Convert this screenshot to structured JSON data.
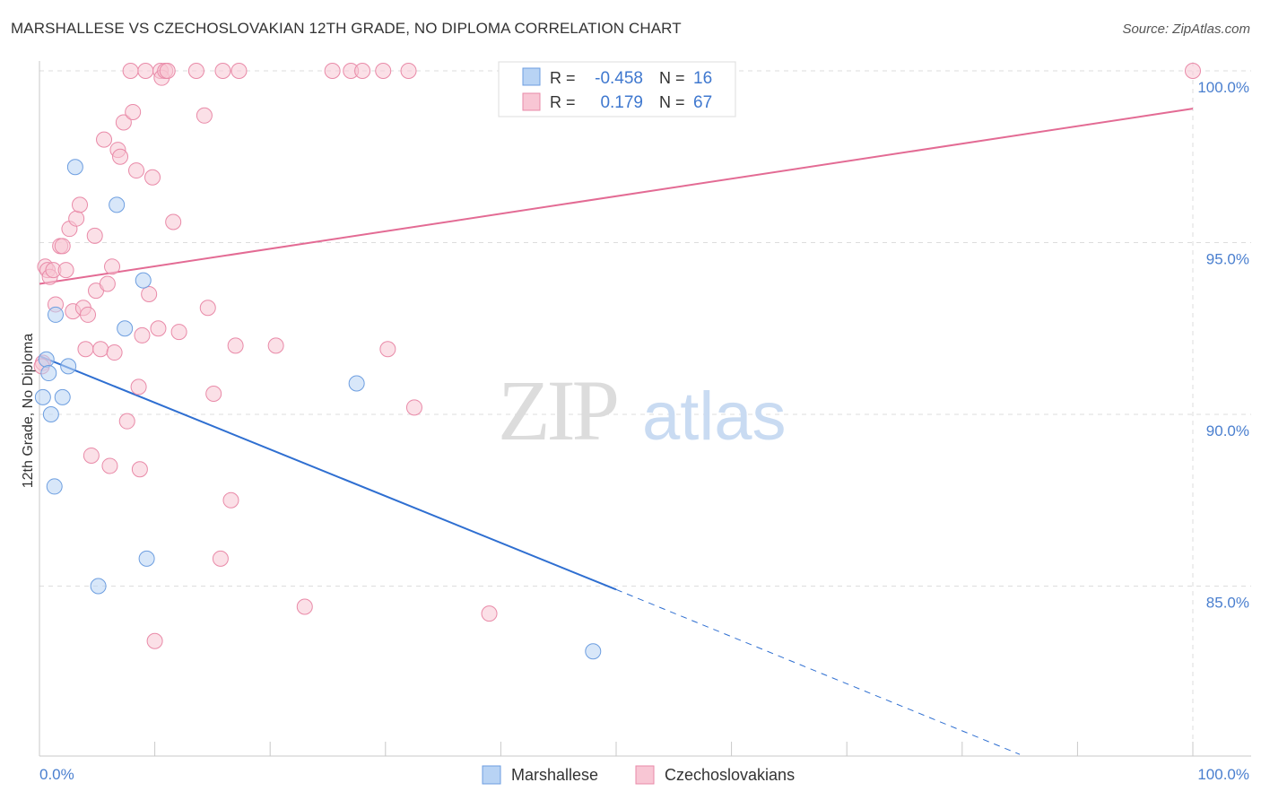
{
  "title": "MARSHALLESE VS CZECHOSLOVAKIAN 12TH GRADE, NO DIPLOMA CORRELATION CHART",
  "source": "Source: ZipAtlas.com",
  "watermark": {
    "zip": "ZIP",
    "atlas": "atlas"
  },
  "colors": {
    "marshallese_fill": "#b8d3f4",
    "marshallese_stroke": "#6d9ee0",
    "marshallese_line": "#2f6fd1",
    "czech_fill": "#f8c6d4",
    "czech_stroke": "#e98aa8",
    "czech_line": "#e36b94",
    "tick_text": "#4a7fcf",
    "grid": "#dddddd"
  },
  "legend": {
    "rows": [
      {
        "r_label": "R =",
        "r_value": "-0.458",
        "n_label": "N =",
        "n_value": "16"
      },
      {
        "r_label": "R =",
        "r_value": "0.179",
        "n_label": "N =",
        "n_value": "67"
      }
    ]
  },
  "chart_data": {
    "type": "scatter",
    "xlabel": "",
    "ylabel": "12th Grade, No Diploma",
    "x_ticks": [
      "0.0%",
      "100.0%"
    ],
    "y_ticks": [
      "85.0%",
      "90.0%",
      "95.0%",
      "100.0%"
    ],
    "xlim": [
      0,
      100
    ],
    "ylim": [
      80.5,
      100.4
    ],
    "grid": true,
    "legend_position": "top-center",
    "series": [
      {
        "name": "Marshallese",
        "points": [
          [
            0.3,
            90.5
          ],
          [
            0.6,
            91.6
          ],
          [
            0.8,
            91.2
          ],
          [
            1.0,
            90.0
          ],
          [
            1.3,
            87.9
          ],
          [
            1.4,
            92.9
          ],
          [
            2.0,
            90.5
          ],
          [
            2.5,
            91.4
          ],
          [
            3.1,
            97.2
          ],
          [
            5.1,
            85.0
          ],
          [
            6.7,
            96.1
          ],
          [
            7.4,
            92.5
          ],
          [
            9.0,
            93.9
          ],
          [
            9.3,
            85.8
          ],
          [
            27.5,
            90.9
          ],
          [
            48.0,
            83.1
          ]
        ],
        "trend": {
          "x": [
            0,
            50,
            85
          ],
          "y": [
            91.7,
            84.9,
            80.1
          ],
          "solid_to": 50
        }
      },
      {
        "name": "Czechoslovakians",
        "points": [
          [
            0.3,
            91.5
          ],
          [
            0.5,
            94.3
          ],
          [
            0.7,
            94.2
          ],
          [
            0.9,
            94.0
          ],
          [
            1.2,
            94.2
          ],
          [
            1.4,
            93.2
          ],
          [
            1.8,
            94.9
          ],
          [
            2.0,
            94.9
          ],
          [
            2.3,
            94.2
          ],
          [
            2.6,
            95.4
          ],
          [
            2.9,
            93.0
          ],
          [
            3.2,
            95.7
          ],
          [
            3.5,
            96.1
          ],
          [
            3.8,
            93.1
          ],
          [
            4.0,
            91.9
          ],
          [
            4.2,
            92.9
          ],
          [
            4.5,
            88.8
          ],
          [
            4.8,
            95.2
          ],
          [
            4.9,
            93.6
          ],
          [
            5.3,
            91.9
          ],
          [
            5.6,
            98.0
          ],
          [
            5.9,
            93.8
          ],
          [
            6.1,
            88.5
          ],
          [
            6.3,
            94.3
          ],
          [
            6.5,
            91.8
          ],
          [
            6.8,
            97.7
          ],
          [
            7.0,
            97.5
          ],
          [
            7.3,
            98.5
          ],
          [
            7.6,
            89.8
          ],
          [
            7.9,
            100.0
          ],
          [
            8.1,
            98.8
          ],
          [
            8.4,
            97.1
          ],
          [
            8.6,
            90.8
          ],
          [
            8.7,
            88.4
          ],
          [
            8.9,
            92.3
          ],
          [
            9.2,
            100.0
          ],
          [
            9.5,
            93.5
          ],
          [
            9.8,
            96.9
          ],
          [
            10.0,
            83.4
          ],
          [
            10.3,
            92.5
          ],
          [
            10.5,
            100.0
          ],
          [
            10.6,
            99.8
          ],
          [
            10.9,
            100.0
          ],
          [
            11.1,
            100.0
          ],
          [
            11.6,
            95.6
          ],
          [
            12.1,
            92.4
          ],
          [
            13.6,
            100.0
          ],
          [
            14.3,
            98.7
          ],
          [
            14.6,
            93.1
          ],
          [
            15.1,
            90.6
          ],
          [
            15.7,
            85.8
          ],
          [
            15.9,
            100.0
          ],
          [
            16.6,
            87.5
          ],
          [
            17.0,
            92.0
          ],
          [
            17.3,
            100.0
          ],
          [
            20.5,
            92.0
          ],
          [
            23.0,
            84.4
          ],
          [
            25.4,
            100.0
          ],
          [
            27.0,
            100.0
          ],
          [
            28.0,
            100.0
          ],
          [
            29.8,
            100.0
          ],
          [
            30.2,
            91.9
          ],
          [
            32.0,
            100.0
          ],
          [
            32.5,
            90.2
          ],
          [
            39.0,
            84.2
          ],
          [
            100.0,
            100.0
          ],
          [
            0.2,
            91.4
          ]
        ],
        "trend": {
          "x": [
            0,
            100
          ],
          "y": [
            93.8,
            98.9
          ],
          "solid_to": 100
        }
      }
    ]
  }
}
